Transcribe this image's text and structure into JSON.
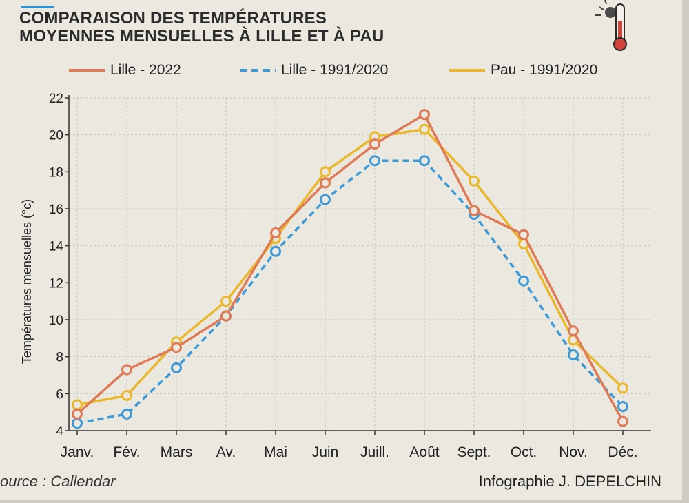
{
  "header": {
    "title_line1": "COMPARAISON DES TEMPÉRATURES",
    "title_line2": "MOYENNES MENSUELLES À LILLE ET À PAU"
  },
  "colors": {
    "lille_2022": "#de7a55",
    "lille_1991_2020": "#3e9ad6",
    "pau_1991_2020": "#e9b82c",
    "accent": "#3a8fc9"
  },
  "icons": {
    "thermometer": "thermometer-icon"
  },
  "chart_data": {
    "type": "line",
    "ylabel": "Températures mensuelles (°c)",
    "xlabel": "",
    "ylim": [
      4,
      22
    ],
    "yticks": [
      "4",
      "6",
      "8",
      "10",
      "12",
      "14",
      "16",
      "18",
      "20",
      "22"
    ],
    "categories": [
      "Janv.",
      "Fév.",
      "Mars",
      "Av.",
      "Mai",
      "Juin",
      "Juill.",
      "Août",
      "Sept.",
      "Oct.",
      "Nov.",
      "Déc."
    ],
    "grid": true,
    "legend": "top",
    "series": [
      {
        "name": "Lille - 2022",
        "style": "solid",
        "values": [
          4.9,
          7.3,
          8.5,
          10.2,
          14.7,
          17.4,
          19.5,
          21.1,
          15.9,
          14.6,
          9.4,
          4.5
        ]
      },
      {
        "name": "Lille - 1991/2020",
        "style": "dashed",
        "values": [
          4.4,
          4.9,
          7.4,
          10.2,
          13.7,
          16.5,
          18.6,
          18.6,
          15.7,
          12.1,
          8.1,
          5.3
        ]
      },
      {
        "name": "Pau - 1991/2020",
        "style": "solid",
        "values": [
          5.4,
          5.9,
          8.8,
          11.0,
          14.4,
          18.0,
          19.9,
          20.3,
          17.5,
          14.1,
          8.9,
          6.3
        ]
      }
    ]
  },
  "footer": {
    "source": "ource :  Callendar",
    "credit": "Infographie J. DEPELCHIN"
  }
}
